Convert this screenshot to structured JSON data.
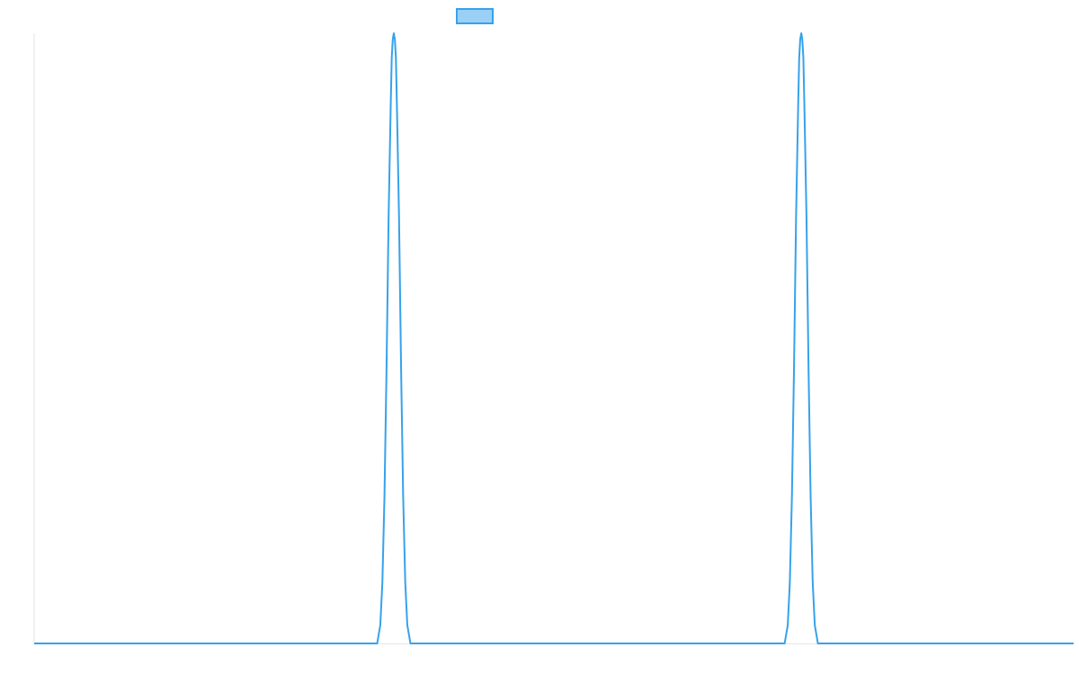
{
  "chart_data": {
    "type": "line",
    "title": "",
    "xlabel": "",
    "ylabel": "",
    "grid": false,
    "legend": {
      "position": "top",
      "entries": [
        {
          "name": "",
          "color": "#36a2eb"
        }
      ]
    },
    "series": [
      {
        "name": "",
        "color": "#36a2eb",
        "fill": "#9ad0f5",
        "points": [
          [
            0,
            0
          ],
          [
            330,
            0
          ],
          [
            333,
            3
          ],
          [
            335,
            10
          ],
          [
            337,
            24
          ],
          [
            339,
            45
          ],
          [
            341,
            70
          ],
          [
            343,
            88
          ],
          [
            344,
            96
          ],
          [
            345,
            99
          ],
          [
            346,
            100
          ],
          [
            347,
            99
          ],
          [
            348,
            96
          ],
          [
            349,
            88
          ],
          [
            351,
            70
          ],
          [
            353,
            45
          ],
          [
            355,
            24
          ],
          [
            357,
            10
          ],
          [
            359,
            3
          ],
          [
            362,
            0
          ],
          [
            722,
            0
          ],
          [
            725,
            3
          ],
          [
            727,
            10
          ],
          [
            729,
            24
          ],
          [
            731,
            45
          ],
          [
            733,
            70
          ],
          [
            735,
            88
          ],
          [
            736,
            96
          ],
          [
            737,
            99
          ],
          [
            738,
            100
          ],
          [
            739,
            99
          ],
          [
            740,
            96
          ],
          [
            741,
            88
          ],
          [
            743,
            70
          ],
          [
            745,
            45
          ],
          [
            747,
            24
          ],
          [
            749,
            10
          ],
          [
            751,
            3
          ],
          [
            754,
            0
          ],
          [
            1000,
            0
          ]
        ]
      }
    ],
    "xlim": [
      0,
      1000
    ],
    "ylim": [
      0,
      100
    ]
  }
}
